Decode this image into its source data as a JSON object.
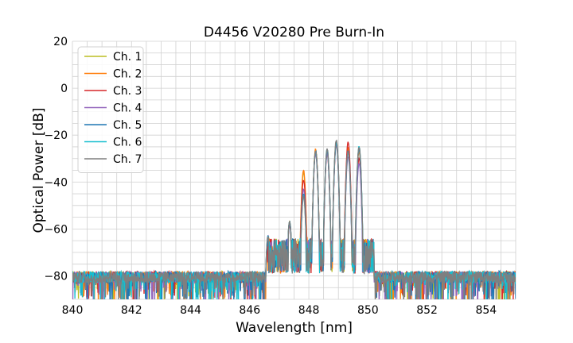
{
  "chart_data": {
    "type": "line",
    "title": "D4456 V20280 Pre Burn-In",
    "xlabel": "Wavelength [nm]",
    "ylabel": "Optical Power [dB]",
    "xlim": [
      840,
      855
    ],
    "ylim": [
      -90,
      20
    ],
    "xticks": [
      840,
      842,
      844,
      846,
      848,
      850,
      852,
      854
    ],
    "yticks": [
      -80,
      -60,
      -40,
      -20,
      0,
      20
    ],
    "ytick_labels": [
      "−80",
      "−60",
      "−40",
      "−20",
      "0",
      "20"
    ],
    "grid": true,
    "legend_position": "upper-left",
    "noise_floor_db": -80,
    "noise_floor_range_nm": [
      [
        840,
        846.6
      ],
      [
        850.2,
        855
      ]
    ],
    "series": [
      {
        "name": "Ch. 1",
        "color": "#bcbd22",
        "peaks_nm": [
          846.62,
          847.35,
          847.82,
          848.23,
          848.62,
          848.93,
          849.33,
          849.7
        ],
        "peaks_db": [
          -64,
          -58,
          -36,
          -27,
          -27,
          -23,
          -26,
          -26
        ]
      },
      {
        "name": "Ch. 2",
        "color": "#ff7f0e",
        "peaks_nm": [
          846.62,
          847.35,
          847.82,
          848.23,
          848.62,
          848.93,
          849.33,
          849.7
        ],
        "peaks_db": [
          -64,
          -57,
          -35,
          -26,
          -27,
          -23,
          -25,
          -27
        ]
      },
      {
        "name": "Ch. 3",
        "color": "#d62728",
        "peaks_nm": [
          846.62,
          847.35,
          847.82,
          848.23,
          848.62,
          848.93,
          849.33,
          849.7
        ],
        "peaks_db": [
          -64,
          -58,
          -39,
          -27,
          -28,
          -24,
          -23,
          -30
        ]
      },
      {
        "name": "Ch. 4",
        "color": "#9467bd",
        "peaks_nm": [
          846.62,
          847.35,
          847.82,
          848.23,
          848.62,
          848.93,
          849.33,
          849.7
        ],
        "peaks_db": [
          -63,
          -58,
          -43,
          -28,
          -28,
          -24,
          -29,
          -32
        ]
      },
      {
        "name": "Ch. 5",
        "color": "#1f77b4",
        "peaks_nm": [
          846.62,
          847.35,
          847.82,
          848.23,
          848.62,
          848.93,
          849.33,
          849.7
        ],
        "peaks_db": [
          -64,
          -57,
          -45,
          -27,
          -27,
          -23,
          -27,
          -26
        ]
      },
      {
        "name": "Ch. 6",
        "color": "#17becf",
        "peaks_nm": [
          846.62,
          847.35,
          847.82,
          848.23,
          848.62,
          848.93,
          849.33,
          849.7
        ],
        "peaks_db": [
          -63,
          -57,
          -46,
          -27,
          -26,
          -23,
          -27,
          -25
        ]
      },
      {
        "name": "Ch. 7",
        "color": "#7f7f7f",
        "peaks_nm": [
          846.62,
          847.35,
          847.82,
          848.23,
          848.62,
          848.93,
          849.33,
          849.7
        ],
        "peaks_db": [
          -63,
          -57,
          -46,
          -27,
          -26,
          -22,
          -27,
          -25
        ]
      }
    ]
  }
}
